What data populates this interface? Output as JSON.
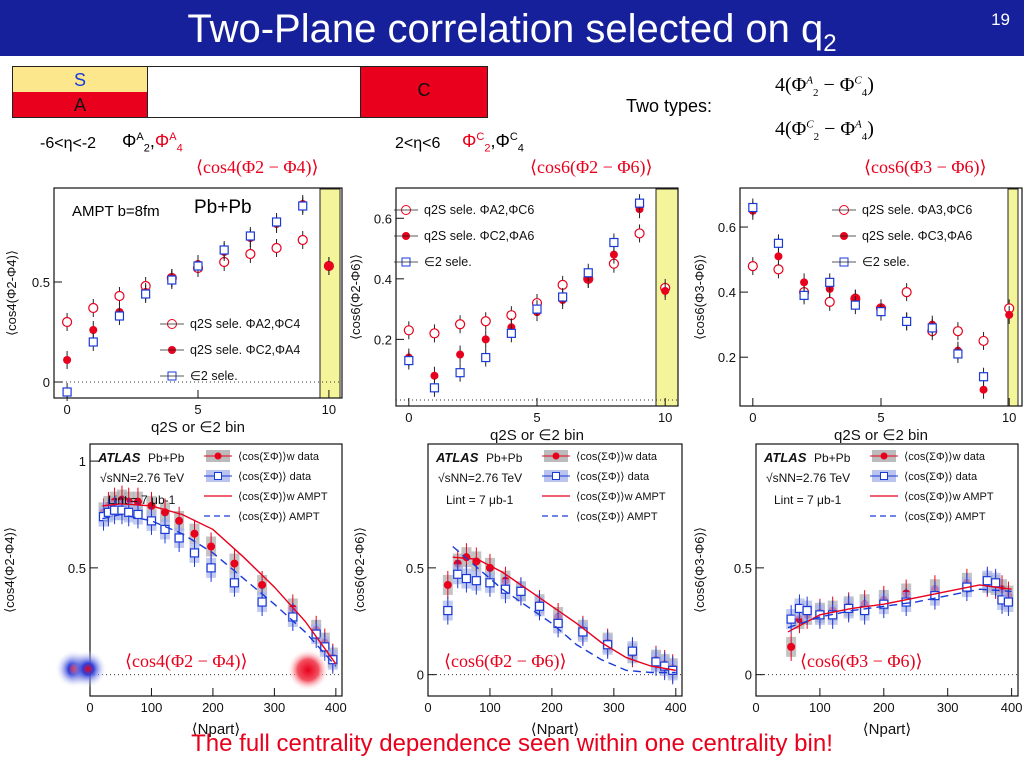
{
  "slide": {
    "title_main": "Two-Plane correlation selected on q",
    "title_sub": "2",
    "number": "19",
    "conclusion": "The full centrality dependence seen within one centrality bin!"
  },
  "scheme": {
    "s_label": "S",
    "a_label": "A",
    "c_label": "C",
    "left_eta": "-6<η<-2",
    "right_eta": "2<η<6",
    "left_planes": "ΦA2,ΦA4",
    "right_planes": "ΦC2,ΦC4"
  },
  "types": {
    "label": "Two types:",
    "type1": "4(ΦA2 − ΦC4)",
    "type2": "4(ΦC2 − ΦA4)"
  },
  "observables": {
    "o1": "⟨cos4(Φ2 − Φ4)⟩",
    "o2": "⟨cos6(Φ2 − Φ6)⟩",
    "o3": "⟨cos6(Φ3 − Φ6)⟩"
  },
  "top_panels": {
    "p1": {
      "ylabel": "⟨cos4(Φ2-Φ4)⟩",
      "xlabel": "q2S or ∈2 bin",
      "note": "AMPT b=8fm",
      "system": "Pb+Pb",
      "legend": [
        "q2S sele. ΦA2,ΦC4",
        "q2S sele. ΦC2,ΦA4",
        "∈2 sele."
      ]
    },
    "p2": {
      "ylabel": "⟨cos6(Φ2-Φ6)⟩",
      "xlabel": "q2S or ∈2 bin",
      "legend": [
        "q2S sele. ΦA2,ΦC6",
        "q2S sele. ΦC2,ΦA6",
        "∈2 sele."
      ]
    },
    "p3": {
      "ylabel": "⟨cos6(Φ3-Φ6)⟩",
      "xlabel": "q2S or ∈2 bin",
      "legend": [
        "q2S sele. ΦA3,ΦC6",
        "q2S sele. ΦC3,ΦA6",
        "∈2 sele."
      ]
    }
  },
  "bottom_panels": {
    "atlas": "ATLAS",
    "system": "Pb+Pb",
    "energy": "√sNN=2.76 TeV",
    "lumi": "Lint = 7 μb-1",
    "xlabel": "⟨Npart⟩",
    "legend": [
      "⟨cos(ΣΦ)⟩w data",
      "⟨cos(ΣΦ)⟩ data",
      "⟨cos(ΣΦ)⟩w AMPT",
      "⟨cos(ΣΦ)⟩ AMPT"
    ],
    "ylabels": [
      "⟨cos4(Φ2-Φ4)⟩",
      "⟨cos6(Φ2-Φ6)⟩",
      "⟨cos6(Φ3-Φ6)⟩"
    ]
  },
  "colors": {
    "header": "#16209a",
    "red": "#e8001c",
    "blue": "#1a3ad8",
    "band": "#f4f59a",
    "yellowbox": "#fde78c"
  },
  "chart_data": [
    {
      "type": "scatter",
      "title": "",
      "xlabel": "q2S or ∈2 bin",
      "ylabel": "⟨cos4(Φ2-Φ4)⟩",
      "xlim": [
        -0.5,
        10.5
      ],
      "ylim": [
        -0.08,
        0.97
      ],
      "xticks": [
        0,
        5,
        10
      ],
      "yticks": [
        0,
        0.5
      ],
      "series": [
        {
          "name": "q2S sele. ΦA2,ΦC4",
          "marker": "open-circle",
          "color": "#e8001c",
          "x": [
            0,
            1,
            2,
            3,
            4,
            5,
            6,
            7,
            8,
            9,
            10
          ],
          "y": [
            0.3,
            0.37,
            0.43,
            0.48,
            0.52,
            0.57,
            0.6,
            0.64,
            0.67,
            0.71,
            0.58
          ]
        },
        {
          "name": "q2S sele. ΦC2,ΦA4",
          "marker": "filled-circle",
          "color": "#e8001c",
          "x": [
            0,
            1,
            2,
            3,
            4,
            5,
            6,
            7,
            8,
            9,
            10
          ],
          "y": [
            0.11,
            0.26,
            0.35,
            0.45,
            0.52,
            0.59,
            0.65,
            0.72,
            0.79,
            0.89,
            0.58
          ]
        },
        {
          "name": "∈2 sele.",
          "marker": "open-square",
          "color": "#1a3ad8",
          "x": [
            0,
            1,
            2,
            3,
            4,
            5,
            6,
            7,
            8,
            9
          ],
          "y": [
            -0.05,
            0.2,
            0.33,
            0.44,
            0.51,
            0.58,
            0.66,
            0.73,
            0.8,
            0.88
          ]
        }
      ]
    },
    {
      "type": "scatter",
      "xlabel": "q2S or ∈2 bin",
      "ylabel": "⟨cos6(Φ2-Φ6)⟩",
      "xlim": [
        -0.5,
        10.5
      ],
      "ylim": [
        -0.02,
        0.7
      ],
      "xticks": [
        0,
        5,
        10
      ],
      "yticks": [
        0.2,
        0.4,
        0.6
      ],
      "series": [
        {
          "name": "q2S sele. ΦA2,ΦC6",
          "marker": "open-circle",
          "color": "#e8001c",
          "x": [
            0,
            1,
            2,
            3,
            4,
            5,
            6,
            7,
            8,
            9,
            10
          ],
          "y": [
            0.23,
            0.22,
            0.25,
            0.26,
            0.28,
            0.32,
            0.38,
            0.4,
            0.45,
            0.55,
            0.37
          ]
        },
        {
          "name": "q2S sele. ΦC2,ΦA6",
          "marker": "filled-circle",
          "color": "#e8001c",
          "x": [
            0,
            1,
            2,
            3,
            4,
            5,
            6,
            7,
            8,
            9,
            10
          ],
          "y": [
            0.14,
            0.08,
            0.15,
            0.2,
            0.24,
            0.29,
            0.33,
            0.4,
            0.48,
            0.63,
            0.36
          ]
        },
        {
          "name": "∈2 sele.",
          "marker": "open-square",
          "color": "#1a3ad8",
          "x": [
            0,
            1,
            2,
            3,
            4,
            5,
            6,
            7,
            8,
            9
          ],
          "y": [
            0.13,
            0.04,
            0.09,
            0.14,
            0.22,
            0.3,
            0.34,
            0.42,
            0.52,
            0.65
          ]
        }
      ]
    },
    {
      "type": "scatter",
      "xlabel": "q2S or ∈2 bin",
      "ylabel": "⟨cos6(Φ3-Φ6)⟩",
      "xlim": [
        -0.5,
        10.5
      ],
      "ylim": [
        0.05,
        0.72
      ],
      "xticks": [
        0,
        5,
        10
      ],
      "yticks": [
        0.2,
        0.4,
        0.6
      ],
      "series": [
        {
          "name": "q2S sele. ΦA3,ΦC6",
          "marker": "open-circle",
          "color": "#e8001c",
          "x": [
            0,
            1,
            2,
            3,
            4,
            5,
            6,
            7,
            8,
            9,
            10
          ],
          "y": [
            0.48,
            0.47,
            0.4,
            0.37,
            0.38,
            0.35,
            0.4,
            0.28,
            0.28,
            0.25,
            0.35
          ]
        },
        {
          "name": "q2S sele. ΦC3,ΦA6",
          "marker": "filled-circle",
          "color": "#e8001c",
          "x": [
            0,
            1,
            2,
            3,
            4,
            5,
            6,
            7,
            8,
            9,
            10
          ],
          "y": [
            0.65,
            0.51,
            0.43,
            0.41,
            0.38,
            0.35,
            0.31,
            0.3,
            0.22,
            0.1,
            0.33
          ]
        },
        {
          "name": "∈2 sele.",
          "marker": "open-square",
          "color": "#1a3ad8",
          "x": [
            0,
            1,
            2,
            3,
            4,
            5,
            6,
            7,
            8,
            9
          ],
          "y": [
            0.66,
            0.55,
            0.39,
            0.43,
            0.36,
            0.34,
            0.31,
            0.29,
            0.21,
            0.14
          ]
        }
      ]
    },
    {
      "type": "scatter",
      "xlabel": "⟨Npart⟩",
      "ylabel": "⟨cos4(Φ2-Φ4)⟩",
      "xlim": [
        0,
        410
      ],
      "ylim": [
        -0.1,
        1.08
      ],
      "xticks": [
        0,
        100,
        200,
        300,
        400
      ],
      "yticks": [
        0.5,
        1
      ],
      "series": [
        {
          "name": "⟨cos(ΣΦ)⟩w data",
          "marker": "filled-circle",
          "color": "#e8001c",
          "x": [
            22,
            30,
            40,
            52,
            63,
            78,
            100,
            122,
            145,
            170,
            197,
            235,
            280,
            330,
            368,
            382,
            395
          ],
          "y": [
            0.76,
            0.79,
            0.81,
            0.82,
            0.81,
            0.81,
            0.79,
            0.76,
            0.72,
            0.66,
            0.6,
            0.52,
            0.42,
            0.31,
            0.21,
            0.15,
            0.08
          ]
        },
        {
          "name": "⟨cos(ΣΦ)⟩ data",
          "marker": "open-square",
          "color": "#1a3ad8",
          "x": [
            22,
            30,
            40,
            52,
            63,
            78,
            100,
            122,
            145,
            170,
            197,
            235,
            280,
            330,
            368,
            382,
            395
          ],
          "y": [
            0.74,
            0.76,
            0.77,
            0.77,
            0.76,
            0.75,
            0.72,
            0.68,
            0.64,
            0.57,
            0.5,
            0.43,
            0.34,
            0.27,
            0.19,
            0.13,
            0.07
          ]
        },
        {
          "name": "⟨cos(ΣΦ)⟩w AMPT",
          "marker": "line",
          "color": "#e8001c",
          "x": [
            20,
            50,
            100,
            150,
            200,
            250,
            300,
            350,
            400
          ],
          "y": [
            0.79,
            0.8,
            0.79,
            0.75,
            0.68,
            0.55,
            0.41,
            0.25,
            0.05
          ]
        },
        {
          "name": "⟨cos(ΣΦ)⟩ AMPT",
          "marker": "dashed",
          "color": "#1a3ad8",
          "x": [
            20,
            50,
            100,
            150,
            200,
            250,
            300,
            350,
            400
          ],
          "y": [
            0.73,
            0.75,
            0.72,
            0.66,
            0.57,
            0.45,
            0.33,
            0.2,
            0.04
          ]
        }
      ]
    },
    {
      "type": "scatter",
      "xlabel": "⟨Npart⟩",
      "ylabel": "⟨cos6(Φ2-Φ6)⟩",
      "xlim": [
        0,
        410
      ],
      "ylim": [
        -0.1,
        1.08
      ],
      "xticks": [
        0,
        100,
        200,
        300,
        400
      ],
      "yticks": [
        0,
        0.5
      ],
      "series": [
        {
          "name": "⟨cos(ΣΦ)⟩w data",
          "marker": "filled-circle",
          "color": "#e8001c",
          "x": [
            32,
            48,
            62,
            78,
            100,
            125,
            150,
            180,
            210,
            250,
            290,
            330,
            368,
            382,
            395
          ],
          "y": [
            0.42,
            0.52,
            0.55,
            0.53,
            0.5,
            0.44,
            0.39,
            0.33,
            0.27,
            0.21,
            0.15,
            0.1,
            0.07,
            0.05,
            0.03
          ]
        },
        {
          "name": "⟨cos(ΣΦ)⟩ data",
          "marker": "open-square",
          "color": "#1a3ad8",
          "x": [
            32,
            48,
            62,
            78,
            100,
            125,
            150,
            180,
            210,
            250,
            290,
            330,
            368,
            382,
            395
          ],
          "y": [
            0.3,
            0.47,
            0.45,
            0.44,
            0.43,
            0.4,
            0.39,
            0.32,
            0.24,
            0.2,
            0.14,
            0.11,
            0.06,
            0.04,
            0.02
          ]
        },
        {
          "name": "⟨cos(ΣΦ)⟩w AMPT",
          "marker": "line",
          "color": "#e8001c",
          "x": [
            40,
            80,
            120,
            160,
            200,
            240,
            280,
            320,
            360,
            400
          ],
          "y": [
            0.55,
            0.54,
            0.48,
            0.4,
            0.32,
            0.24,
            0.15,
            0.08,
            0.04,
            0.02
          ]
        },
        {
          "name": "⟨cos(ΣΦ)⟩ AMPT",
          "marker": "dashed",
          "color": "#1a3ad8",
          "x": [
            40,
            80,
            120,
            160,
            200,
            240,
            280,
            320,
            360,
            400
          ],
          "y": [
            0.6,
            0.5,
            0.4,
            0.32,
            0.24,
            0.14,
            0.07,
            0.02,
            0.01,
            0.01
          ]
        }
      ]
    },
    {
      "type": "scatter",
      "xlabel": "⟨Npart⟩",
      "ylabel": "⟨cos6(Φ3-Φ6)⟩",
      "xlim": [
        0,
        410
      ],
      "ylim": [
        -0.1,
        1.08
      ],
      "xticks": [
        0,
        100,
        200,
        300,
        400
      ],
      "yticks": [
        0,
        0.5
      ],
      "series": [
        {
          "name": "⟨cos(ΣΦ)⟩w data",
          "marker": "filled-circle",
          "color": "#e8001c",
          "x": [
            55,
            68,
            80,
            100,
            120,
            145,
            170,
            200,
            235,
            280,
            330,
            362,
            375,
            385,
            395
          ],
          "y": [
            0.13,
            0.26,
            0.28,
            0.29,
            0.3,
            0.32,
            0.33,
            0.35,
            0.38,
            0.4,
            0.43,
            0.43,
            0.42,
            0.4,
            0.37
          ]
        },
        {
          "name": "⟨cos(ΣΦ)⟩ data",
          "marker": "open-square",
          "color": "#1a3ad8",
          "x": [
            55,
            68,
            80,
            100,
            120,
            145,
            170,
            200,
            235,
            280,
            330,
            362,
            375,
            385,
            395
          ],
          "y": [
            0.26,
            0.31,
            0.3,
            0.28,
            0.28,
            0.31,
            0.3,
            0.33,
            0.34,
            0.37,
            0.41,
            0.44,
            0.43,
            0.35,
            0.34
          ]
        },
        {
          "name": "⟨cos(ΣΦ)⟩w AMPT",
          "marker": "line",
          "color": "#e8001c",
          "x": [
            50,
            100,
            150,
            200,
            250,
            300,
            350,
            400
          ],
          "y": [
            0.2,
            0.28,
            0.31,
            0.33,
            0.36,
            0.39,
            0.42,
            0.4
          ]
        },
        {
          "name": "⟨cos(ΣΦ)⟩ AMPT",
          "marker": "dashed",
          "color": "#1a3ad8",
          "x": [
            50,
            100,
            150,
            200,
            250,
            300,
            350,
            400
          ],
          "y": [
            0.22,
            0.27,
            0.3,
            0.32,
            0.34,
            0.37,
            0.4,
            0.39
          ]
        }
      ]
    }
  ]
}
